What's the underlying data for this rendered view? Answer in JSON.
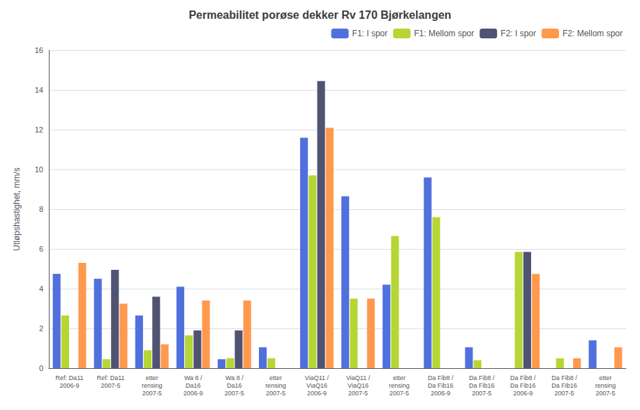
{
  "chart_data": {
    "type": "bar",
    "title": "Permeabilitet porøse dekker Rv 170 Bjørkelangen",
    "ylabel": "Utløpshastighet, mm/s",
    "categories": [
      "Ref: Da11\n2006-9",
      "Ref: Da11\n2007-5",
      "etter\nrensing\n2007-5",
      "Wa 8 /\nDa16\n2006-9",
      "Wa 8 /\nDa16\n2007-5",
      "etter\nrensing\n2007-5",
      "ViaQ11 /\nViaQ16\n2006-9",
      "ViaQ11 /\nViaQ16\n2007-5",
      "etter\nrensing\n2007-5",
      "Da Fib8 /\nDa Fib16\n2006-9",
      "Da Fib8 /\nDa Fib16\n2007-5",
      "Da Fib8 /\nDa Fib16\n2006-9",
      "Da Fib8 /\nDa Fib16\n2007-5",
      "etter\nrensing\n2007-5"
    ],
    "series": [
      {
        "name": "F1: I spor",
        "values": [
          4.75,
          4.5,
          2.65,
          4.1,
          0.45,
          1.05,
          11.6,
          8.65,
          4.2,
          9.6,
          1.05,
          0.0,
          0.0,
          1.4
        ]
      },
      {
        "name": "F1: Mellom spor",
        "values": [
          2.65,
          0.45,
          0.9,
          1.65,
          0.5,
          0.5,
          9.7,
          3.5,
          6.65,
          7.6,
          0.4,
          5.85,
          0.5,
          0.0
        ]
      },
      {
        "name": "F2: I spor",
        "values": [
          0.0,
          4.95,
          3.6,
          1.9,
          1.9,
          0.0,
          14.45,
          0.0,
          0.0,
          0.0,
          0.0,
          5.85,
          0.0,
          0.0
        ]
      },
      {
        "name": "F2: Mellom spor",
        "values": [
          5.3,
          3.25,
          1.2,
          3.4,
          3.4,
          0.0,
          12.1,
          3.5,
          0.0,
          0.0,
          0.0,
          4.75,
          0.5,
          1.05
        ]
      }
    ],
    "ylim": [
      0,
      16
    ],
    "yticks": [
      0,
      2,
      4,
      6,
      8,
      10,
      12,
      14,
      16
    ],
    "grid": true,
    "legend": "upper right"
  }
}
